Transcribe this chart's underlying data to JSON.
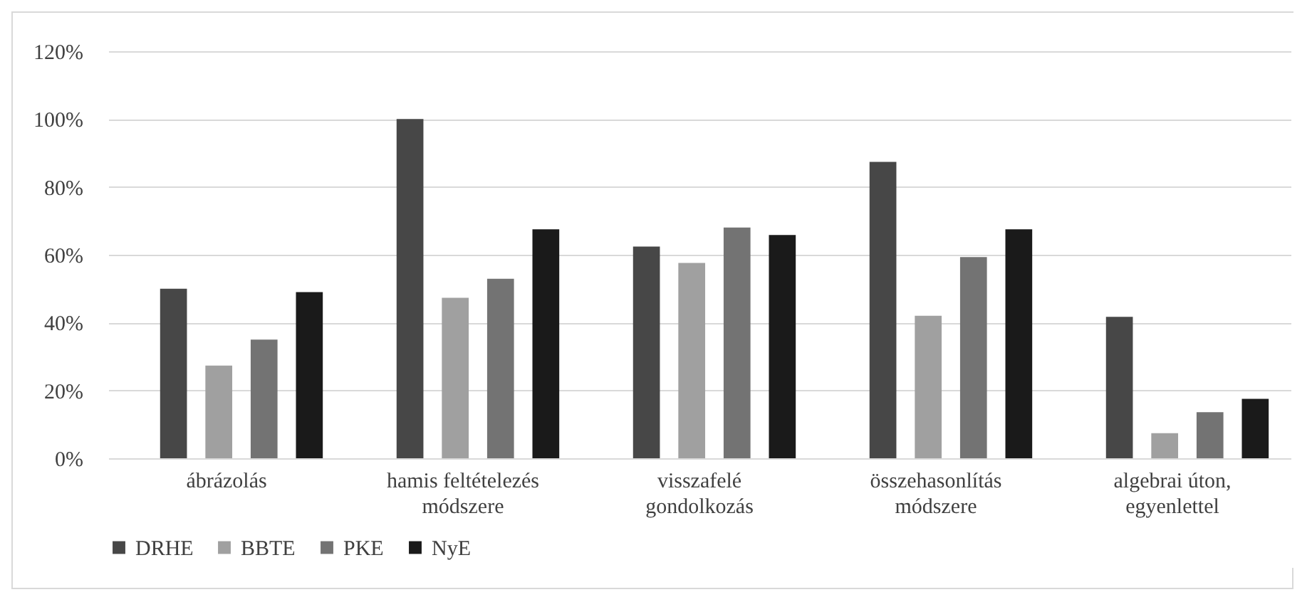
{
  "chart_data": {
    "type": "bar",
    "categories": [
      "ábrázolás",
      "hamis feltételezés\nmódszere",
      "visszafelé\ngondolkozás",
      "összehasonlítás\nmódszere",
      "algebrai úton,\negyenlettel"
    ],
    "series": [
      {
        "name": "DRHE",
        "color": "#474747",
        "values": [
          50,
          100,
          62.4,
          87.4,
          41.7
        ]
      },
      {
        "name": "BBTE",
        "color": "#a0a0a0",
        "values": [
          27.3,
          47.3,
          57.6,
          42,
          7.4
        ]
      },
      {
        "name": "PKE",
        "color": "#737373",
        "values": [
          35,
          52.9,
          68,
          59.3,
          13.6
        ]
      },
      {
        "name": "NyE",
        "color": "#1a1a1a",
        "values": [
          49,
          67.5,
          65.8,
          67.5,
          17.5
        ]
      }
    ],
    "ylim": [
      0,
      120
    ],
    "yticks": [
      {
        "value": 0,
        "label": "0%"
      },
      {
        "value": 20,
        "label": "20%"
      },
      {
        "value": 40,
        "label": "40%"
      },
      {
        "value": 60,
        "label": "60%"
      },
      {
        "value": 80,
        "label": "80%"
      },
      {
        "value": 100,
        "label": "100%"
      },
      {
        "value": 120,
        "label": "120%"
      }
    ],
    "grid": "y",
    "legend": "bottom"
  }
}
